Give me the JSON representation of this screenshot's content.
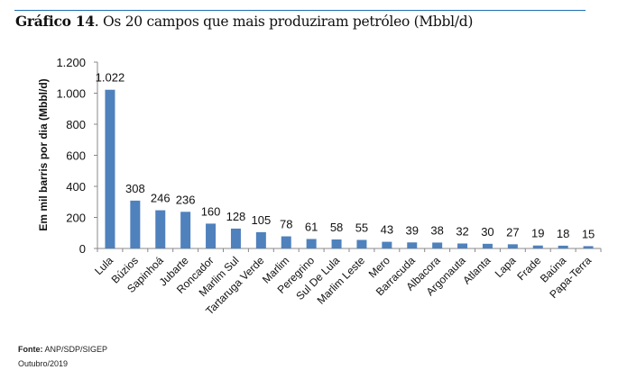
{
  "figure": {
    "title_label": "Gráfico 14",
    "title_text": ". Os 20 campos que mais produziram petróleo (Mbbl/d)",
    "source_label": "Fonte:",
    "source_value": " ANP/SDP/SIGEP",
    "date": "Outubro/2019"
  },
  "colors": {
    "bar": "#4f81bd",
    "accent_line": "#1f6fb2",
    "axis": "#888888"
  },
  "chart_data": {
    "type": "bar",
    "title": "Os 20 campos que mais produziram petróleo (Mbbl/d)",
    "xlabel": "",
    "ylabel": "Em mil barris por dia (Mbbl/d)",
    "ylim": [
      0,
      1200
    ],
    "yticks": [
      0,
      200,
      400,
      600,
      800,
      1000,
      1200
    ],
    "ytick_labels": [
      "0",
      "200",
      "400",
      "600",
      "800",
      "1.000",
      "1.200"
    ],
    "grid": false,
    "categories": [
      "Lula",
      "Búzios",
      "Sapinhoá",
      "Jubarte",
      "Roncador",
      "Marlim Sul",
      "Tartaruga Verde",
      "Marlim",
      "Peregrino",
      "Sul De Lula",
      "Marlim Leste",
      "Mero",
      "Barracuda",
      "Albacora",
      "Argonauta",
      "Atlanta",
      "Lapa",
      "Frade",
      "Baúna",
      "Papa-Terra"
    ],
    "values": [
      1022,
      308,
      246,
      236,
      160,
      128,
      105,
      78,
      61,
      58,
      55,
      43,
      39,
      38,
      32,
      30,
      27,
      19,
      18,
      15
    ],
    "data_labels": [
      "1.022",
      "308",
      "246",
      "236",
      "160",
      "128",
      "105",
      "78",
      "61",
      "58",
      "55",
      "43",
      "39",
      "38",
      "32",
      "30",
      "27",
      "19",
      "18",
      "15"
    ]
  }
}
